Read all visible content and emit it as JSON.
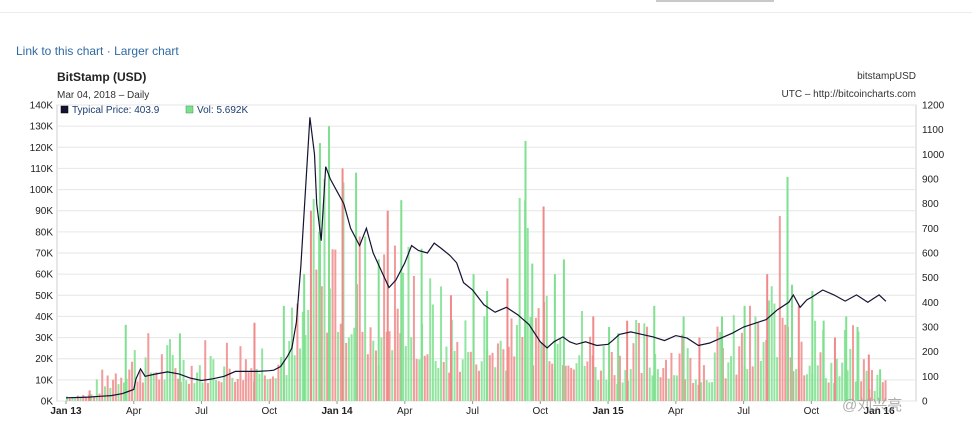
{
  "links": {
    "link_chart": "Link to this chart",
    "separator": "·",
    "larger_chart": "Larger chart"
  },
  "header": {
    "title": "BitStamp (USD)",
    "subtitle": "Mar 04, 2018 – Daily",
    "symbol": "bitstampUSD",
    "source": "UTC – http://bitcoincharts.com"
  },
  "legend": {
    "price_label": "Typical Price: 403.9",
    "vol_label": "Vol: 5.692K"
  },
  "watermark": "@刘兴亮",
  "colors": {
    "price_line": "#141432",
    "vol_up": "#7fe08f",
    "vol_down": "#f08a8a",
    "grid": "#e6e6e6"
  },
  "chart_data": {
    "type": "line",
    "title": "BitStamp (USD)",
    "x_tick_labels": [
      "Jan 13",
      "Apr",
      "Jul",
      "Oct",
      "Jan 14",
      "Apr",
      "Jul",
      "Oct",
      "Jan 15",
      "Apr",
      "Jul",
      "Oct",
      "Jan 16"
    ],
    "y_left": {
      "ylim": [
        0,
        140000
      ],
      "ticks": [
        "0K",
        "10K",
        "20K",
        "30K",
        "40K",
        "50K",
        "60K",
        "70K",
        "80K",
        "90K",
        "100K",
        "110K",
        "120K",
        "130K",
        "140K"
      ]
    },
    "y_right": {
      "ylim": [
        0,
        1200
      ],
      "ticks": [
        "0",
        "100",
        "200",
        "300",
        "400",
        "500",
        "600",
        "700",
        "800",
        "900",
        "1000",
        "1100",
        "1200"
      ]
    },
    "grid": true,
    "legend_position": "top-left",
    "series": [
      {
        "name": "Typical Price",
        "axis": "right",
        "x_months": [
          0,
          0.5,
          1,
          1.5,
          2,
          2.5,
          3,
          3.1,
          3.3,
          3.5,
          4,
          4.5,
          5,
          5.5,
          6,
          6.5,
          7,
          7.5,
          8,
          8.5,
          9,
          9.2,
          9.5,
          9.8,
          10,
          10.2,
          10.4,
          10.6,
          10.8,
          11,
          11.1,
          11.3,
          11.5,
          11.7,
          12,
          12.3,
          12.6,
          13,
          13.3,
          13.6,
          14,
          14.3,
          14.6,
          15,
          15.3,
          15.6,
          16,
          16.3,
          16.6,
          17,
          17.3,
          17.6,
          18,
          18.5,
          19,
          19.5,
          20,
          20.5,
          21,
          21.3,
          21.6,
          22,
          22.3,
          22.6,
          23,
          23.5,
          24,
          24.2,
          24.5,
          25,
          25.5,
          26,
          26.5,
          27,
          27.5,
          28,
          28.5,
          29,
          29.5,
          30,
          30.5,
          31,
          31.5,
          32,
          32.2,
          32.5,
          32.8,
          33,
          33.5,
          34,
          34.5,
          35,
          35.5,
          36,
          36.3
        ],
        "values": [
          13,
          14,
          16,
          19,
          22,
          30,
          47,
          90,
          130,
          100,
          110,
          118,
          110,
          93,
          83,
          90,
          100,
          120,
          120,
          120,
          123,
          125,
          140,
          180,
          215,
          320,
          550,
          850,
          1150,
          1000,
          800,
          650,
          950,
          900,
          850,
          800,
          700,
          630,
          700,
          600,
          520,
          460,
          490,
          560,
          630,
          610,
          600,
          640,
          620,
          590,
          560,
          480,
          450,
          390,
          360,
          380,
          350,
          310,
          240,
          215,
          240,
          260,
          240,
          230,
          240,
          225,
          230,
          245,
          270,
          280,
          270,
          260,
          245,
          265,
          255,
          225,
          235,
          255,
          275,
          300,
          315,
          330,
          370,
          400,
          430,
          380,
          410,
          420,
          450,
          430,
          405,
          430,
          400,
          430,
          404
        ]
      },
      {
        "name": "Vol",
        "axis": "left",
        "type": "bar",
        "x_months": [
          1,
          2.6,
          5,
          8.3,
          9.6,
          10.5,
          10.8,
          11.2,
          11.6,
          12.2,
          12.8,
          13.8,
          14.2,
          14.8,
          15.7,
          17,
          18,
          18.6,
          19.5,
          20.3,
          20.6,
          21.1,
          21.6,
          22,
          23.3,
          24,
          24.4,
          24.8,
          26,
          27.3,
          28,
          29,
          30,
          31,
          31.9,
          32.1,
          32.4,
          33,
          33.5,
          34,
          34.5,
          35,
          35.5,
          36
        ],
        "values": [
          5,
          36,
          32,
          37,
          45,
          60,
          90,
          122,
          130,
          110,
          108,
          67,
          90,
          95,
          72,
          50,
          60,
          52,
          58,
          123,
          65,
          92,
          60,
          67,
          40,
          35,
          32,
          38,
          45,
          40,
          30,
          40,
          45,
          60,
          106,
          55,
          45,
          52,
          38,
          30,
          40,
          35,
          22,
          15
        ]
      }
    ]
  }
}
